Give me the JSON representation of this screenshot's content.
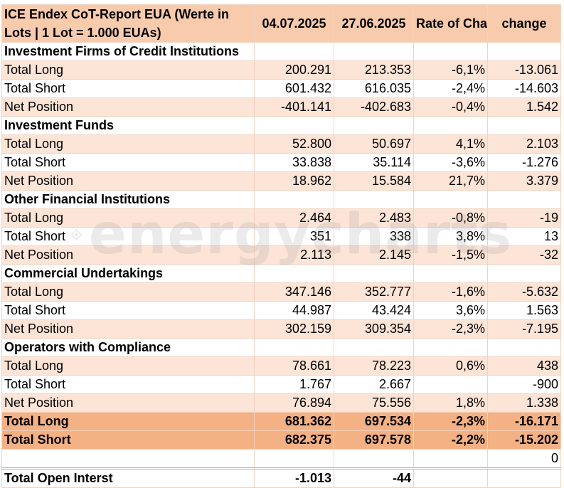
{
  "header": {
    "title": "ICE Endex CoT-Report EUA (Werte in Lots | 1 Lot = 1.000 EUAs)",
    "col_date1": "04.07.2025",
    "col_date2": "27.06.2025",
    "col_rate": "Rate of Change",
    "col_change": "change"
  },
  "sections": [
    {
      "title": "Investment Firms of Credit Institutions",
      "rows": [
        {
          "label": "Total Long",
          "v1": "200.291",
          "v2": "213.353",
          "rate": "-6,1%",
          "change": "-13.061"
        },
        {
          "label": "Total Short",
          "v1": "601.432",
          "v2": "616.035",
          "rate": "-2,4%",
          "change": "-14.603"
        },
        {
          "label": "Net Position",
          "v1": "-401.141",
          "v2": "-402.683",
          "rate": "-0,4%",
          "change": "1.542"
        }
      ]
    },
    {
      "title": "Investment Funds",
      "rows": [
        {
          "label": "Total Long",
          "v1": "52.800",
          "v2": "50.697",
          "rate": "4,1%",
          "change": "2.103"
        },
        {
          "label": "Total Short",
          "v1": "33.838",
          "v2": "35.114",
          "rate": "-3,6%",
          "change": "-1.276"
        },
        {
          "label": "Net Position",
          "v1": "18.962",
          "v2": "15.584",
          "rate": "21,7%",
          "change": "3.379"
        }
      ]
    },
    {
      "title": "Other Financial Institutions",
      "rows": [
        {
          "label": "Total Long",
          "v1": "2.464",
          "v2": "2.483",
          "rate": "-0,8%",
          "change": "-19"
        },
        {
          "label": "Total Short",
          "v1": "351",
          "v2": "338",
          "rate": "3,8%",
          "change": "13"
        },
        {
          "label": "Net Position",
          "v1": "2.113",
          "v2": "2.145",
          "rate": "-1,5%",
          "change": "-32"
        }
      ]
    },
    {
      "title": "Commercial Undertakings",
      "rows": [
        {
          "label": "Total Long",
          "v1": "347.146",
          "v2": "352.777",
          "rate": "-1,6%",
          "change": "-5.632"
        },
        {
          "label": "Total Short",
          "v1": "44.987",
          "v2": "43.424",
          "rate": "3,6%",
          "change": "1.563"
        },
        {
          "label": "Net Position",
          "v1": "302.159",
          "v2": "309.354",
          "rate": "-2,3%",
          "change": "-7.195"
        }
      ]
    },
    {
      "title": "Operators with Compliance",
      "rows": [
        {
          "label": "Total Long",
          "v1": "78.661",
          "v2": "78.223",
          "rate": "0,6%",
          "change": "438"
        },
        {
          "label": "Total Short",
          "v1": "1.767",
          "v2": "2.667",
          "rate": "",
          "change": "-900"
        },
        {
          "label": "Net Position",
          "v1": "76.894",
          "v2": "75.556",
          "rate": "1,8%",
          "change": "1.338"
        }
      ]
    }
  ],
  "totals": [
    {
      "label": "Total Long",
      "v1": "681.362",
      "v2": "697.534",
      "rate": "-2,3%",
      "change": "-16.171"
    },
    {
      "label": "Total Short",
      "v1": "682.375",
      "v2": "697.578",
      "rate": "-2,2%",
      "change": "-15.202"
    }
  ],
  "extra_value": "0",
  "open_interest": {
    "label": "Total Open Interst",
    "v1": "-1.013",
    "v2": "-44"
  },
  "watermark": {
    "text": "energycharts",
    "icon": "energycharts-logo-icon"
  },
  "colors": {
    "header": "#f8cbad",
    "shaded_row": "#fce4d6",
    "total_row": "#f4b183"
  }
}
